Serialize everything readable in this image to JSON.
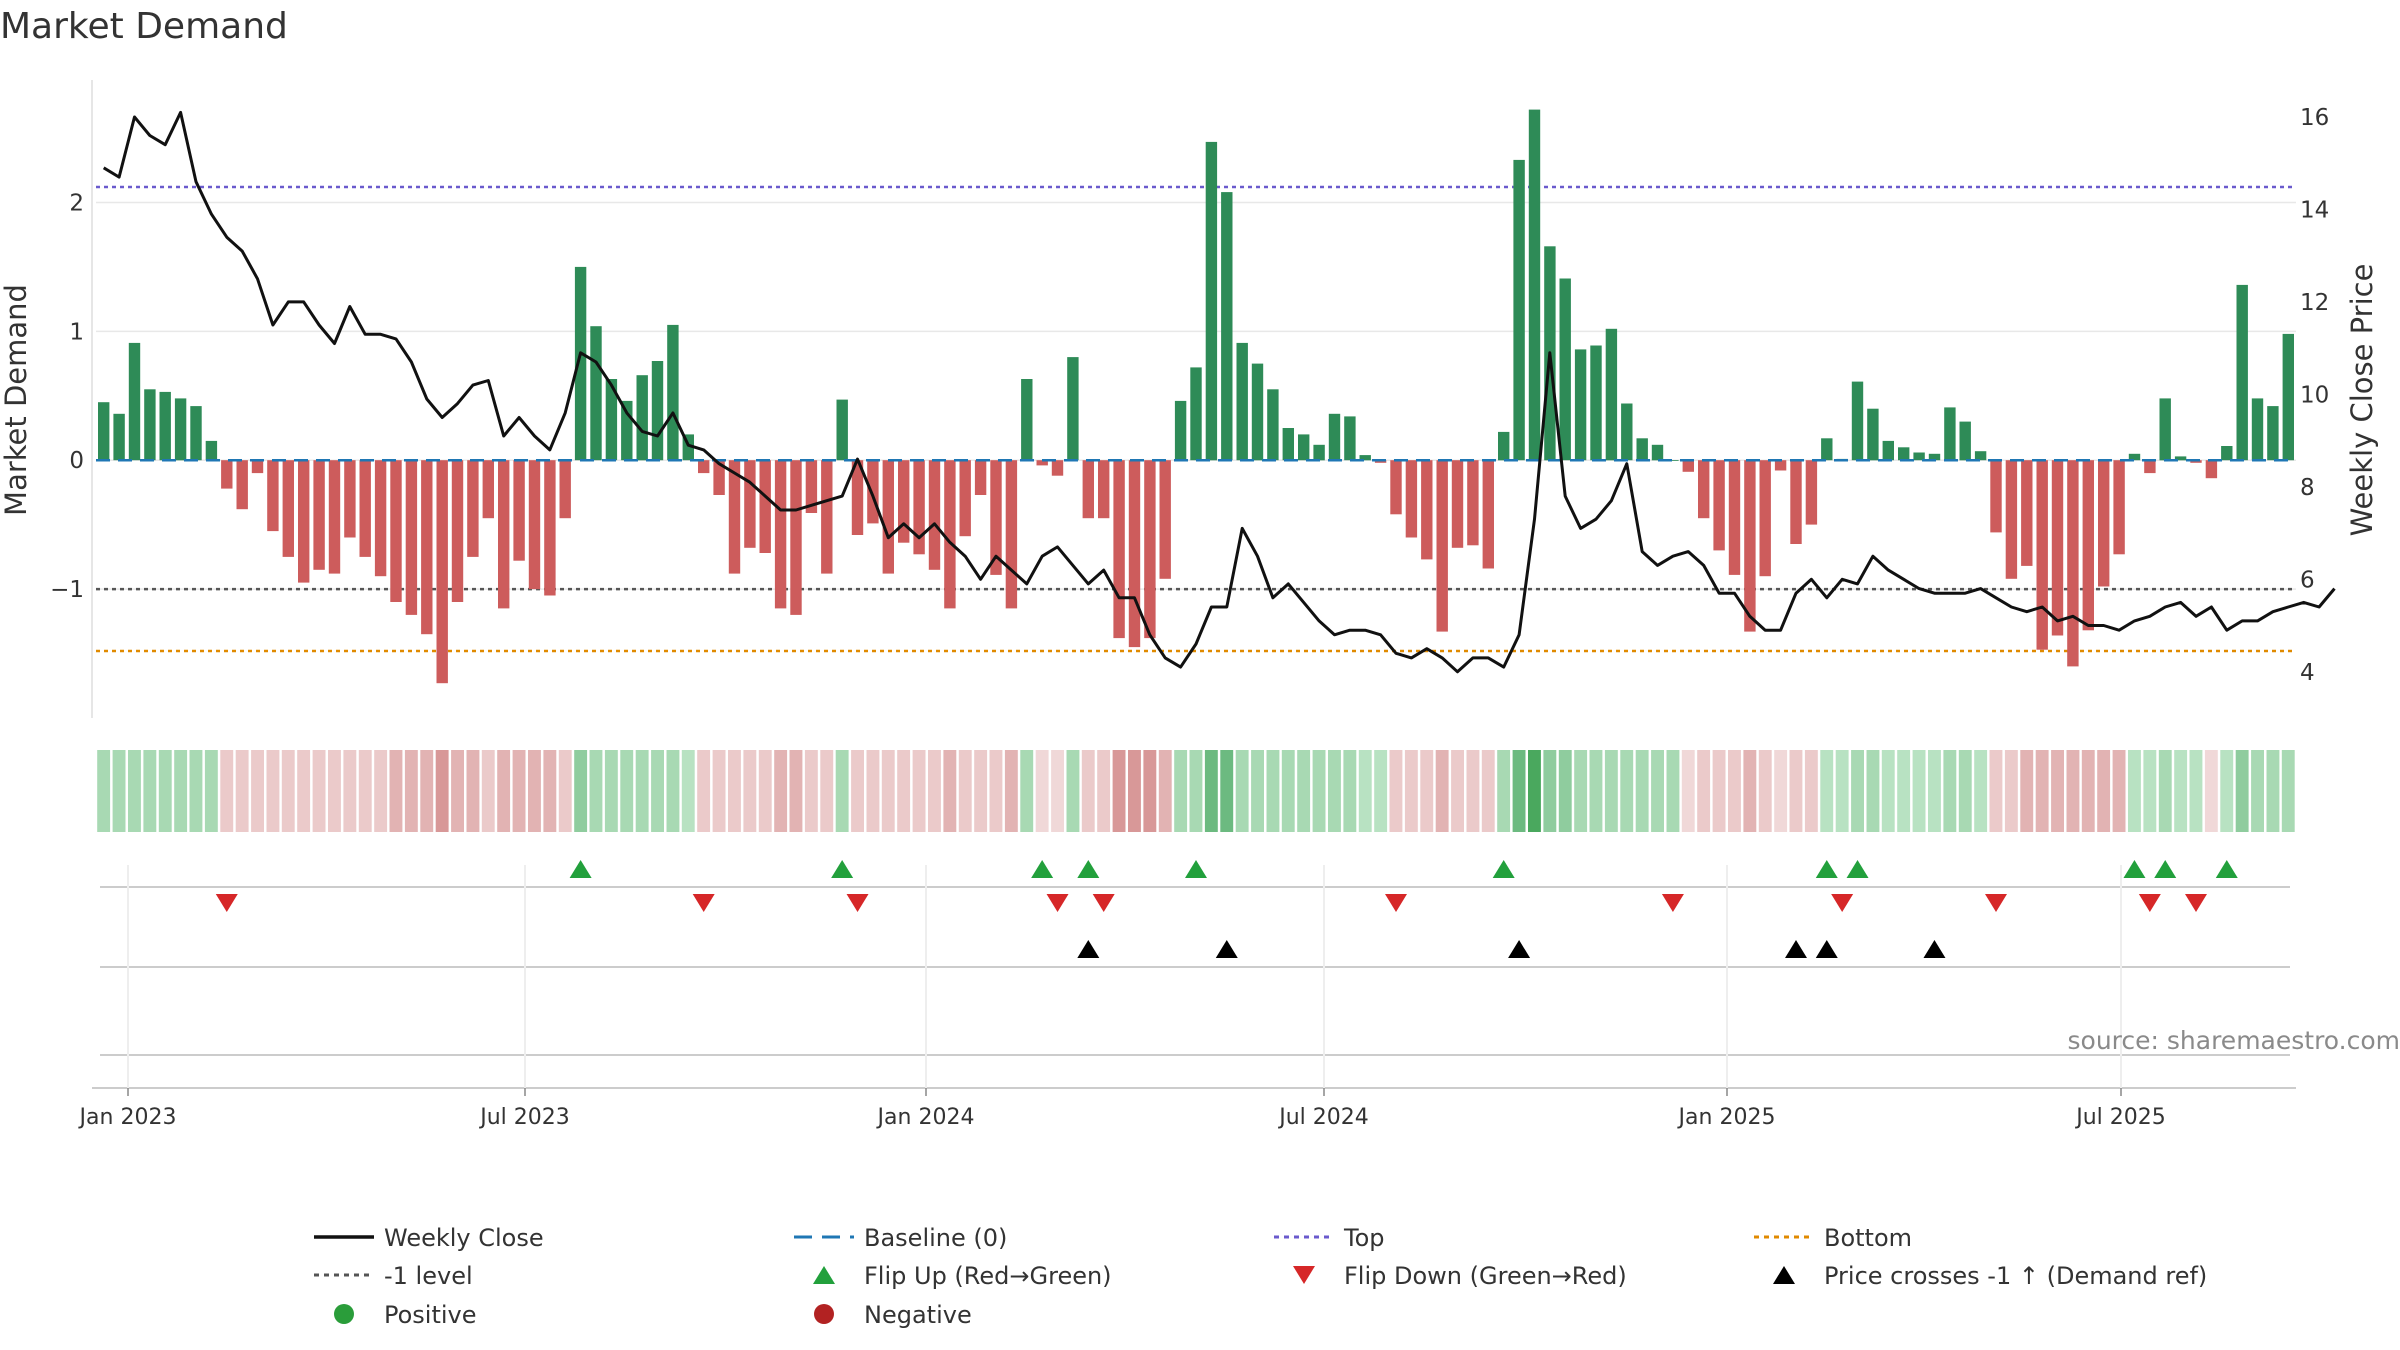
{
  "chart_data": {
    "type": "bar+line",
    "title": "Market Demand",
    "ylabel_left": "Market Demand",
    "ylabel_right": "Weekly Close Price",
    "source": "source: sharemaestro.com",
    "x_ticks": [
      "Jan 2023",
      "Jul 2023",
      "Jan 2024",
      "Jul 2024",
      "Jan 2025",
      "Jul 2025"
    ],
    "left_axis": {
      "ylim": [
        -2.0,
        2.95
      ],
      "ticks": [
        -1,
        0,
        1,
        2
      ],
      "tick_labels": [
        "−1",
        "0",
        "1",
        "2"
      ]
    },
    "right_axis": {
      "ylim": [
        3.0,
        16.8
      ],
      "ticks": [
        4,
        6,
        8,
        10,
        12,
        14,
        16
      ],
      "tick_labels": [
        "4",
        "6",
        "8",
        "10",
        "12",
        "14",
        "16"
      ]
    },
    "reference_lines": {
      "top": 2.12,
      "minus_one": -1.0,
      "bottom": -1.48,
      "baseline": 0
    },
    "demand": [
      0.45,
      0.36,
      0.91,
      0.55,
      0.53,
      0.48,
      0.42,
      0.15,
      -0.22,
      -0.38,
      -0.1,
      -0.55,
      -0.75,
      -0.95,
      -0.85,
      -0.88,
      -0.6,
      -0.75,
      -0.9,
      -1.1,
      -1.2,
      -1.35,
      -1.73,
      -1.1,
      -0.75,
      -0.45,
      -1.15,
      -0.78,
      -1.0,
      -1.05,
      -0.45,
      1.5,
      1.04,
      0.63,
      0.46,
      0.66,
      0.77,
      1.05,
      0.2,
      -0.1,
      -0.27,
      -0.88,
      -0.68,
      -0.72,
      -1.15,
      -1.2,
      -0.41,
      -0.88,
      0.47,
      -0.58,
      -0.49,
      -0.88,
      -0.64,
      -0.73,
      -0.85,
      -1.15,
      -0.59,
      -0.27,
      -0.89,
      -1.15,
      0.63,
      -0.04,
      -0.12,
      0.8,
      -0.45,
      -0.45,
      -1.38,
      -1.45,
      -1.38,
      -0.92,
      0.46,
      0.72,
      2.47,
      2.08,
      0.91,
      0.75,
      0.55,
      0.25,
      0.2,
      0.12,
      0.36,
      0.34,
      0.04,
      -0.02,
      -0.42,
      -0.6,
      -0.77,
      -1.33,
      -0.68,
      -0.66,
      -0.84,
      0.22,
      2.33,
      2.72,
      1.66,
      1.41,
      0.86,
      0.89,
      1.02,
      0.44,
      0.17,
      0.12,
      0.0,
      -0.09,
      -0.45,
      -0.7,
      -0.89,
      -1.33,
      -0.9,
      -0.08,
      -0.65,
      -0.5,
      0.17,
      0.01,
      0.61,
      0.4,
      0.15,
      0.1,
      0.06,
      0.05,
      0.41,
      0.3,
      0.07,
      -0.56,
      -0.92,
      -0.82,
      -1.47,
      -1.36,
      -1.6,
      -1.32,
      -0.98,
      -0.73,
      0.05,
      -0.1,
      0.48,
      0.03,
      -0.02,
      -0.14,
      0.11,
      1.36,
      0.48,
      0.42,
      0.98
    ],
    "price": [
      14.9,
      14.7,
      16.0,
      15.6,
      15.4,
      16.1,
      14.6,
      13.9,
      13.4,
      13.1,
      12.5,
      11.5,
      12.0,
      12.0,
      11.5,
      11.1,
      11.9,
      11.3,
      11.3,
      11.2,
      10.7,
      9.9,
      9.5,
      9.8,
      10.2,
      10.3,
      9.1,
      9.5,
      9.1,
      8.8,
      9.6,
      10.9,
      10.7,
      10.2,
      9.6,
      9.2,
      9.1,
      9.6,
      8.9,
      8.8,
      8.5,
      8.3,
      8.1,
      7.8,
      7.5,
      7.5,
      7.6,
      7.7,
      7.8,
      8.6,
      7.8,
      6.9,
      7.2,
      6.9,
      7.2,
      6.8,
      6.5,
      6.0,
      6.5,
      6.2,
      5.9,
      6.5,
      6.7,
      6.3,
      5.9,
      6.2,
      5.6,
      5.6,
      4.8,
      4.3,
      4.1,
      4.6,
      5.4,
      5.4,
      7.1,
      6.5,
      5.6,
      5.9,
      5.5,
      5.1,
      4.8,
      4.9,
      4.9,
      4.8,
      4.4,
      4.3,
      4.5,
      4.3,
      4.0,
      4.3,
      4.3,
      4.1,
      4.8,
      7.3,
      10.9,
      7.8,
      7.1,
      7.3,
      7.7,
      8.5,
      6.6,
      6.3,
      6.5,
      6.6,
      6.3,
      5.7,
      5.7,
      5.2,
      4.9,
      4.9,
      5.7,
      6.0,
      5.6,
      6.0,
      5.9,
      6.5,
      6.2,
      6.0,
      5.8,
      5.7,
      5.7,
      5.7,
      5.8,
      5.6,
      5.4,
      5.3,
      5.4,
      5.1,
      5.2,
      5.0,
      5.0,
      4.9,
      5.1,
      5.2,
      5.4,
      5.5,
      5.2,
      5.4,
      4.9,
      5.1,
      5.1,
      5.3,
      5.4,
      5.5,
      5.4,
      5.8
    ],
    "shading_levels": [
      3,
      3,
      3,
      3,
      3,
      3,
      3,
      3,
      -2,
      -2,
      -2,
      -2,
      -2,
      -2,
      -2,
      -2,
      -2,
      -2,
      -2,
      -3,
      -3,
      -3,
      -4,
      -3,
      -3,
      -2,
      -3,
      -3,
      -3,
      -3,
      -2,
      4,
      3,
      3,
      3,
      3,
      3,
      3,
      2,
      -2,
      -2,
      -2,
      -2,
      -2,
      -3,
      -3,
      -2,
      -2,
      3,
      -2,
      -2,
      -2,
      -2,
      -2,
      -2,
      -3,
      -2,
      -2,
      -2,
      -3,
      3,
      -1,
      -1,
      3,
      -2,
      -2,
      -4,
      -4,
      -4,
      -3,
      3,
      3,
      5,
      5,
      3,
      3,
      3,
      3,
      3,
      3,
      3,
      3,
      2,
      2,
      -2,
      -2,
      -2,
      -3,
      -2,
      -2,
      -2,
      3,
      5,
      6,
      4,
      4,
      3,
      3,
      3,
      3,
      3,
      3,
      3,
      -1,
      -2,
      -2,
      -2,
      -3,
      -2,
      -1,
      -2,
      -2,
      2,
      2,
      3,
      3,
      2,
      2,
      2,
      2,
      3,
      3,
      2,
      -2,
      -2,
      -3,
      -3,
      -3,
      -3,
      -3,
      -3,
      -3,
      2,
      2,
      3,
      2,
      2,
      -1,
      2,
      4,
      3,
      3,
      3
    ],
    "flip_up_weeks": [
      31,
      48,
      61,
      64,
      71,
      91,
      112,
      114,
      132,
      134,
      138
    ],
    "flip_down_weeks": [
      8,
      39,
      49,
      62,
      65,
      84,
      102,
      113,
      123,
      133,
      136
    ],
    "price_cross_weeks": [
      64,
      73,
      92,
      110,
      112,
      119
    ],
    "legend": [
      {
        "label": "Weekly Close",
        "kind": "line",
        "color": "#111111"
      },
      {
        "label": "Baseline (0)",
        "kind": "dashed",
        "color": "#1f77b4"
      },
      {
        "label": "Top",
        "kind": "dotted",
        "color": "#6a5acd"
      },
      {
        "label": "Bottom",
        "kind": "dotted",
        "color": "#e08a00"
      },
      {
        "label": "-1 level",
        "kind": "dotted",
        "color": "#555555"
      },
      {
        "label": "Flip Up (Red→Green)",
        "kind": "tri-up",
        "color": "#22a03c"
      },
      {
        "label": "Flip Down (Green→Red)",
        "kind": "tri-down",
        "color": "#d62728"
      },
      {
        "label": "Price crosses -1 ↑ (Demand ref)",
        "kind": "tri-up",
        "color": "#000000"
      },
      {
        "label": "Positive",
        "kind": "dot",
        "color": "#2a9d3a"
      },
      {
        "label": "Negative",
        "kind": "dot",
        "color": "#b22222"
      }
    ],
    "colors": {
      "positive": "#2e8b57",
      "negative": "#cd5c5c",
      "line": "#111111",
      "grid": "#e8e8e8"
    }
  }
}
